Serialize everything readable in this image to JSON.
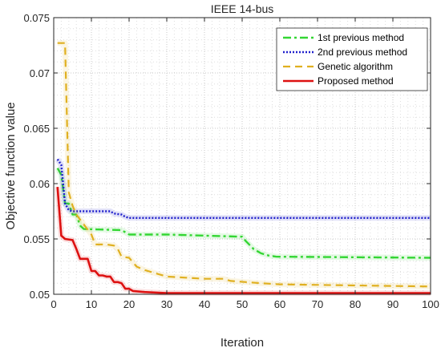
{
  "chart_data": {
    "type": "line",
    "title": "IEEE 14-bus",
    "xlabel": "Iteration",
    "ylabel": "Objective function value",
    "xlim": [
      0,
      100
    ],
    "ylim": [
      0.05,
      0.075
    ],
    "xticks": [
      0,
      10,
      20,
      30,
      40,
      50,
      60,
      70,
      80,
      90,
      100
    ],
    "yticks": [
      0.05,
      0.055,
      0.06,
      0.065,
      0.07,
      0.075
    ],
    "ytick_labels": [
      "0.05",
      "0.055",
      "0.06",
      "0.065",
      "0.07",
      "0.075"
    ],
    "grid": true,
    "legend_position": "top-right",
    "series": [
      {
        "name": "1st previous method",
        "color": "#33d633",
        "style": "dash-dot",
        "points": [
          [
            1,
            0.0614
          ],
          [
            2,
            0.0608
          ],
          [
            3,
            0.0582
          ],
          [
            4,
            0.0582
          ],
          [
            5,
            0.0572
          ],
          [
            6,
            0.0572
          ],
          [
            7,
            0.0562
          ],
          [
            8,
            0.0559
          ],
          [
            18,
            0.0558
          ],
          [
            19,
            0.0556
          ],
          [
            20,
            0.0554
          ],
          [
            30,
            0.0554
          ],
          [
            40,
            0.0553
          ],
          [
            50,
            0.0552
          ],
          [
            51,
            0.0548
          ],
          [
            53,
            0.0541
          ],
          [
            55,
            0.0537
          ],
          [
            57,
            0.0535
          ],
          [
            59,
            0.0534
          ],
          [
            100,
            0.0533
          ]
        ]
      },
      {
        "name": "2nd previous method",
        "color": "#2020cc",
        "style": "dotted",
        "points": [
          [
            1,
            0.0622
          ],
          [
            2,
            0.0617
          ],
          [
            3,
            0.0582
          ],
          [
            4,
            0.0576
          ],
          [
            5,
            0.0575
          ],
          [
            15,
            0.0575
          ],
          [
            16,
            0.0573
          ],
          [
            18,
            0.0572
          ],
          [
            19,
            0.057
          ],
          [
            20,
            0.0569
          ],
          [
            100,
            0.0569
          ]
        ]
      },
      {
        "name": "Genetic algorithm",
        "color": "#e0b020",
        "style": "dashed",
        "points": [
          [
            1,
            0.0727
          ],
          [
            3,
            0.0727
          ],
          [
            4,
            0.0592
          ],
          [
            5,
            0.058
          ],
          [
            6,
            0.0572
          ],
          [
            10,
            0.0554
          ],
          [
            11,
            0.0545
          ],
          [
            14,
            0.0545
          ],
          [
            16,
            0.0544
          ],
          [
            17,
            0.0541
          ],
          [
            18,
            0.0534
          ],
          [
            20,
            0.0533
          ],
          [
            22,
            0.0525
          ],
          [
            24,
            0.0522
          ],
          [
            28,
            0.0518
          ],
          [
            30,
            0.0516
          ],
          [
            35,
            0.0515
          ],
          [
            40,
            0.0514
          ],
          [
            45,
            0.0514
          ],
          [
            47,
            0.0512
          ],
          [
            55,
            0.051
          ],
          [
            60,
            0.0509
          ],
          [
            80,
            0.0508
          ],
          [
            100,
            0.0507
          ]
        ]
      },
      {
        "name": "Proposed method",
        "color": "#dd1111",
        "style": "solid",
        "points": [
          [
            1,
            0.0597
          ],
          [
            2,
            0.0553
          ],
          [
            3,
            0.055
          ],
          [
            5,
            0.0549
          ],
          [
            6,
            0.0541
          ],
          [
            7,
            0.0532
          ],
          [
            8,
            0.0532
          ],
          [
            9,
            0.0532
          ],
          [
            10,
            0.0521
          ],
          [
            11,
            0.0521
          ],
          [
            12,
            0.0517
          ],
          [
            13,
            0.0517
          ],
          [
            14,
            0.0516
          ],
          [
            15,
            0.0516
          ],
          [
            16,
            0.0511
          ],
          [
            17,
            0.0511
          ],
          [
            18,
            0.051
          ],
          [
            19,
            0.0505
          ],
          [
            20,
            0.0505
          ],
          [
            21,
            0.0503
          ],
          [
            24,
            0.0502
          ],
          [
            30,
            0.0501
          ],
          [
            100,
            0.0501
          ]
        ]
      }
    ]
  }
}
